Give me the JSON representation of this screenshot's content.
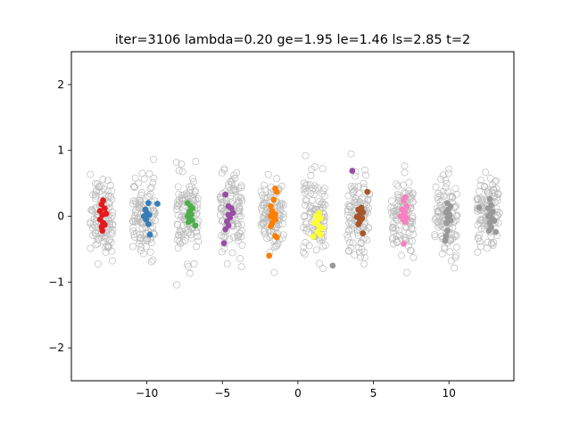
{
  "chart_data": {
    "type": "scatter",
    "title": "iter=3106  lambda=0.20  ge=1.95  le=1.46  ls=2.85  t=2",
    "xlabel": "",
    "ylabel": "",
    "xlim": [
      -15,
      14.3
    ],
    "ylim": [
      -2.5,
      2.5
    ],
    "xticks": [
      -10,
      -5,
      0,
      5,
      10
    ],
    "xtick_labels": [
      "−10",
      "−5",
      "0",
      "5",
      "10"
    ],
    "yticks": [
      -2,
      -1,
      0,
      1,
      2
    ],
    "ytick_labels": [
      "−2",
      "−1",
      "0",
      "1",
      "2"
    ],
    "grid": false,
    "background": {
      "style": "hollow grey circles",
      "edge_color": "#bdbdbd",
      "cluster_centers": [
        -13.0,
        -10.2,
        -7.3,
        -4.4,
        -1.7,
        1.1,
        4.0,
        6.9,
        9.8,
        12.6
      ],
      "cluster_x_spread": 0.75,
      "cluster_y_spread": 0.3,
      "points_per_cluster": 110
    },
    "series": [
      {
        "color": "#e41a1c",
        "points": [
          [
            -12.9,
            0.24
          ],
          [
            -13.0,
            0.18
          ],
          [
            -12.8,
            0.12
          ],
          [
            -13.1,
            0.08
          ],
          [
            -12.95,
            0.02
          ],
          [
            -12.7,
            0.04
          ],
          [
            -13.1,
            -0.05
          ],
          [
            -12.9,
            -0.1
          ],
          [
            -13.0,
            -0.16
          ],
          [
            -12.8,
            -0.13
          ],
          [
            -12.95,
            -0.22
          ]
        ]
      },
      {
        "color": "#377eb8",
        "points": [
          [
            -9.3,
            0.19
          ],
          [
            -9.9,
            0.2
          ],
          [
            -10.1,
            0.1
          ],
          [
            -10.0,
            0.05
          ],
          [
            -9.85,
            0.02
          ],
          [
            -10.2,
            0.0
          ],
          [
            -10.05,
            -0.05
          ],
          [
            -9.9,
            -0.12
          ],
          [
            -9.8,
            -0.28
          ]
        ]
      },
      {
        "color": "#4daf4a",
        "points": [
          [
            -7.3,
            0.2
          ],
          [
            -7.1,
            0.15
          ],
          [
            -7.0,
            0.12
          ],
          [
            -7.2,
            0.07
          ],
          [
            -7.05,
            0.03
          ],
          [
            -7.3,
            0.0
          ],
          [
            -7.15,
            -0.04
          ],
          [
            -7.0,
            -0.06
          ],
          [
            -7.25,
            -0.09
          ],
          [
            -6.8,
            -0.14
          ]
        ]
      },
      {
        "color": "#984ea3",
        "points": [
          [
            3.6,
            0.69
          ],
          [
            -4.8,
            0.33
          ],
          [
            -4.6,
            0.15
          ],
          [
            -4.4,
            0.12
          ],
          [
            -4.3,
            0.05
          ],
          [
            -4.6,
            0.02
          ],
          [
            -4.5,
            -0.02
          ],
          [
            -4.7,
            -0.08
          ],
          [
            -4.6,
            -0.14
          ],
          [
            -4.8,
            -0.2
          ],
          [
            -4.9,
            -0.41
          ]
        ]
      },
      {
        "color": "#ff7f00",
        "points": [
          [
            -1.5,
            0.42
          ],
          [
            -1.4,
            0.37
          ],
          [
            -1.6,
            0.25
          ],
          [
            -1.8,
            0.15
          ],
          [
            -1.7,
            0.08
          ],
          [
            -1.5,
            0.03
          ],
          [
            -1.8,
            0.0
          ],
          [
            -1.6,
            -0.02
          ],
          [
            -1.5,
            -0.05
          ],
          [
            -1.7,
            -0.1
          ],
          [
            -1.8,
            -0.15
          ],
          [
            -1.5,
            -0.3
          ],
          [
            -1.4,
            -0.32
          ],
          [
            -1.9,
            -0.6
          ]
        ]
      },
      {
        "color": "#ffff33",
        "points": [
          [
            1.4,
            0.05
          ],
          [
            1.2,
            0.0
          ],
          [
            1.5,
            -0.03
          ],
          [
            1.3,
            -0.06
          ],
          [
            1.1,
            -0.1
          ],
          [
            1.4,
            -0.15
          ],
          [
            1.6,
            -0.18
          ],
          [
            1.3,
            -0.24
          ],
          [
            1.5,
            -0.28
          ],
          [
            1.0,
            -0.31
          ]
        ]
      },
      {
        "color": "#a65628",
        "points": [
          [
            4.6,
            0.37
          ],
          [
            4.2,
            0.13
          ],
          [
            4.0,
            0.1
          ],
          [
            4.3,
            0.06
          ],
          [
            4.1,
            0.02
          ],
          [
            3.9,
            -0.01
          ],
          [
            4.25,
            -0.03
          ],
          [
            4.1,
            -0.08
          ],
          [
            4.0,
            -0.12
          ],
          [
            4.3,
            -0.26
          ]
        ]
      },
      {
        "color": "#f781bf",
        "points": [
          [
            7.1,
            0.29
          ],
          [
            7.0,
            0.24
          ],
          [
            7.2,
            0.15
          ],
          [
            6.9,
            0.1
          ],
          [
            7.1,
            0.06
          ],
          [
            7.0,
            0.03
          ],
          [
            6.8,
            0.0
          ],
          [
            7.2,
            -0.03
          ],
          [
            7.0,
            -0.06
          ],
          [
            7.1,
            -0.09
          ],
          [
            7.0,
            -0.42
          ]
        ]
      },
      {
        "color": "#999999",
        "points": [
          [
            2.3,
            -0.75
          ],
          [
            12.0,
            0.13
          ],
          [
            9.9,
            0.2
          ],
          [
            10.1,
            0.15
          ],
          [
            9.95,
            0.1
          ],
          [
            9.8,
            0.06
          ],
          [
            10.05,
            0.02
          ],
          [
            9.9,
            -0.02
          ],
          [
            10.1,
            -0.06
          ],
          [
            9.85,
            -0.1
          ],
          [
            9.9,
            -0.22
          ],
          [
            9.8,
            -0.3
          ],
          [
            9.75,
            -0.37
          ],
          [
            12.7,
            0.26
          ],
          [
            12.8,
            0.17
          ],
          [
            12.6,
            0.12
          ],
          [
            12.9,
            0.07
          ],
          [
            12.75,
            0.03
          ],
          [
            12.6,
            0.0
          ],
          [
            12.85,
            -0.04
          ],
          [
            13.0,
            -0.07
          ],
          [
            12.7,
            -0.1
          ],
          [
            12.8,
            -0.17
          ],
          [
            12.65,
            -0.22
          ],
          [
            13.1,
            -0.24
          ]
        ]
      }
    ]
  }
}
